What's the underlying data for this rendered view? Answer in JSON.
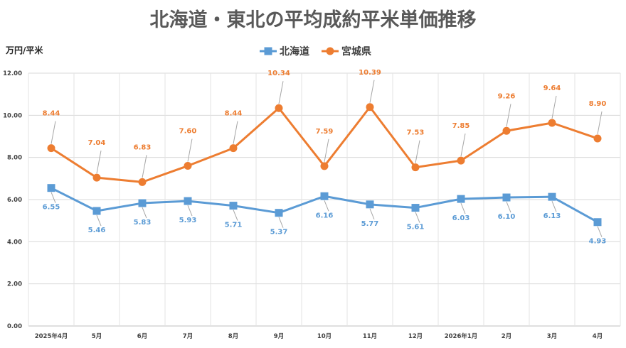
{
  "chart_data": {
    "type": "line",
    "title": "北海道・東北の平均成約平米単価推移",
    "ylabel": "万円/平米",
    "xlabel": "",
    "categories": [
      "2025年4月",
      "5月",
      "6月",
      "7月",
      "8月",
      "9月",
      "10月",
      "11月",
      "12月",
      "2026年1月",
      "2月",
      "3月",
      "4月"
    ],
    "ylim": [
      0,
      12
    ],
    "yticks": [
      "0.00",
      "2.00",
      "4.00",
      "6.00",
      "8.00",
      "10.00",
      "12.00"
    ],
    "grid": true,
    "legend_position": "top",
    "series": [
      {
        "name": "北海道",
        "color": "#5B9BD5",
        "marker": "square",
        "label_position": "below",
        "values": [
          6.55,
          5.46,
          5.83,
          5.93,
          5.71,
          5.37,
          6.16,
          5.77,
          5.61,
          6.03,
          6.1,
          6.13,
          4.93
        ],
        "labels": [
          "6.55",
          "5.46",
          "5.83",
          "5.93",
          "5.71",
          "5.37",
          "6.16",
          "5.77",
          "5.61",
          "6.03",
          "6.10",
          "6.13",
          "4.93"
        ]
      },
      {
        "name": "宮城県",
        "color": "#ED7D31",
        "marker": "circle",
        "label_position": "above",
        "values": [
          8.44,
          7.04,
          6.83,
          7.6,
          8.44,
          10.34,
          7.59,
          10.39,
          7.53,
          7.85,
          9.26,
          9.64,
          8.9
        ],
        "labels": [
          "8.44",
          "7.04",
          "6.83",
          "7.60",
          "8.44",
          "10.34",
          "7.59",
          "10.39",
          "7.53",
          "7.85",
          "9.26",
          "9.64",
          "8.90"
        ]
      }
    ]
  }
}
